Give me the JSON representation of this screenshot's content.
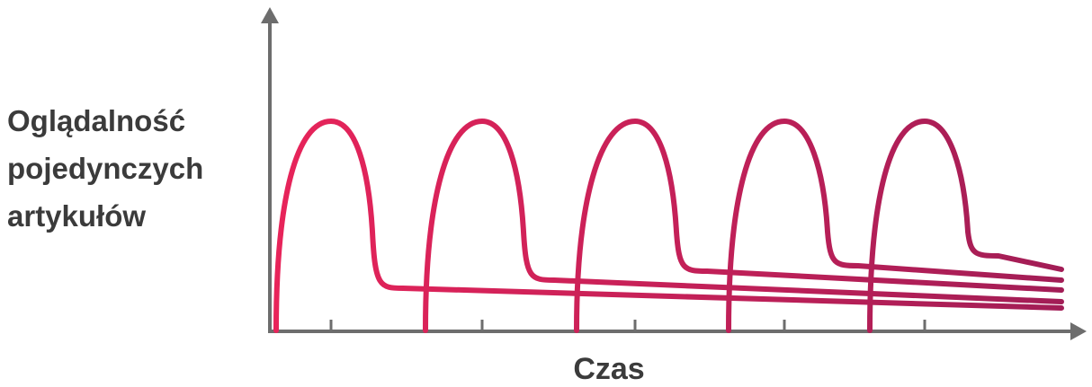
{
  "labels": {
    "y_axis": "Oglądalność\npojedynczych\nartykułów",
    "x_axis": "Czas"
  },
  "colors": {
    "axis": "#6d6d6d",
    "text": "#3b3b3b",
    "gradient_start": "#e8245a",
    "gradient_end": "#a21d56"
  },
  "diagram": {
    "articles": 5,
    "description_type": "repeated spike then long tail",
    "x_ticks": 5
  }
}
